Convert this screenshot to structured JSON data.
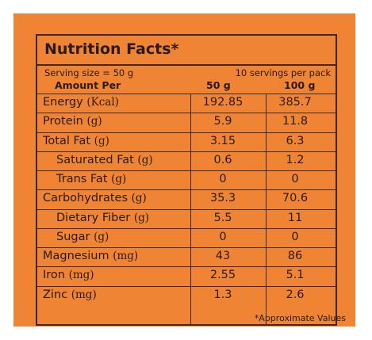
{
  "title": "Nutrition Facts*",
  "serving_size": "Serving size = 50 g",
  "servings_per_pack": "10 servings per pack",
  "amount_per": "Amount Per",
  "col1": "50 g",
  "col2": "100 g",
  "rows": [
    {
      "name": "Energy",
      "unit": "(Kcal)",
      "v50": "192.85",
      "v100": "385.7",
      "indent": false
    },
    {
      "name": "Protein",
      "unit": "(g)",
      "v50": "5.9",
      "v100": "11.8",
      "indent": false
    },
    {
      "name": "Total Fat",
      "unit": "(g)",
      "v50": "3.15",
      "v100": "6.3",
      "indent": false
    },
    {
      "name": "Saturated Fat",
      "unit": "(g)",
      "v50": "0.6",
      "v100": "1.2",
      "indent": true
    },
    {
      "name": "Trans Fat",
      "unit": "(g)",
      "v50": "0",
      "v100": "0",
      "indent": true
    },
    {
      "name": "Carbohydrates",
      "unit": "(g)",
      "v50": "35.3",
      "v100": "70.6",
      "indent": false
    },
    {
      "name": "Dietary Fiber",
      "unit": "(g)",
      "v50": "5.5",
      "v100": "11",
      "indent": true
    },
    {
      "name": "Sugar",
      "unit": "(g)",
      "v50": "0",
      "v100": "0",
      "indent": true
    },
    {
      "name": "Magnesium",
      "unit": "(mg)",
      "v50": "43",
      "v100": "86",
      "indent": false
    },
    {
      "name": "Iron",
      "unit": "(mg)",
      "v50": "2.55",
      "v100": "5.1",
      "indent": false
    },
    {
      "name": "Zinc",
      "unit": "(mg)",
      "v50": "1.3",
      "v100": "2.6",
      "indent": false
    }
  ],
  "footnote": "*Approximate Values"
}
